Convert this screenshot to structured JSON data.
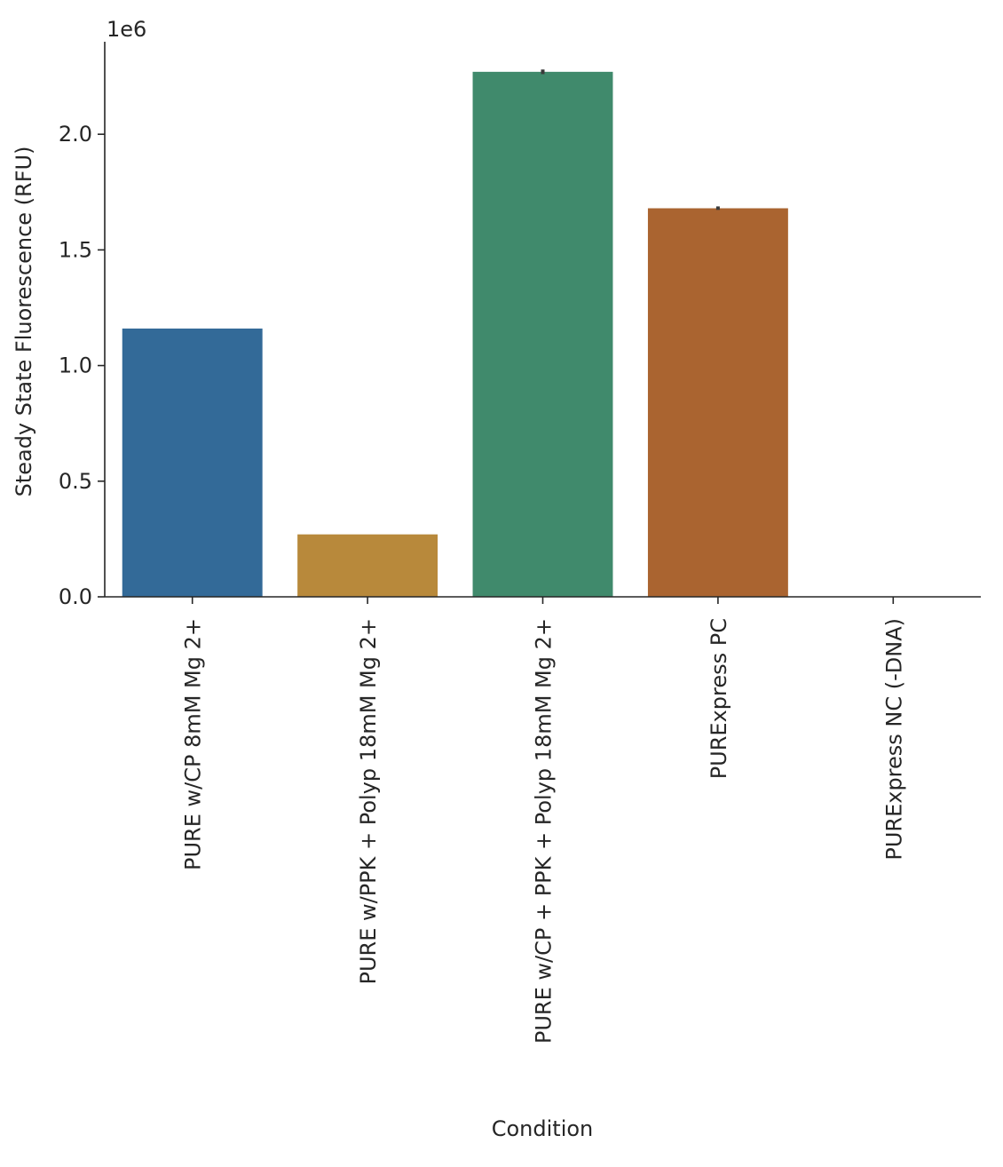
{
  "chart_data": {
    "type": "bar",
    "xlabel": "Condition",
    "ylabel": "Steady State Fluorescence (RFU)",
    "y_offset_label": "1e6",
    "ylim": [
      0,
      2400000
    ],
    "yticks": [
      0,
      500000,
      1000000,
      1500000,
      2000000
    ],
    "ytick_labels": [
      "0.0",
      "0.5",
      "1.0",
      "1.5",
      "2.0"
    ],
    "grid": false,
    "categories": [
      "PURE w/CP 8mM Mg 2+",
      "PURE w/PPK + Polyp 18mM Mg 2+",
      "PURE w/CP + PPK + Polyp 18mM Mg 2+",
      "PURExpress PC",
      "PURExpress NC (-DNA)"
    ],
    "values": [
      1160000,
      270000,
      2270000,
      1680000,
      0
    ],
    "error_low": [
      1160000,
      270000,
      2260000,
      1673000,
      0
    ],
    "error_high": [
      1160000,
      270000,
      2280000,
      1688000,
      0
    ],
    "colors": [
      "#336a98",
      "#b8893b",
      "#408a6c",
      "#aa6430",
      "#6e6e6e"
    ],
    "error_color": "#3a3a3a",
    "axis_color": "#262626"
  }
}
